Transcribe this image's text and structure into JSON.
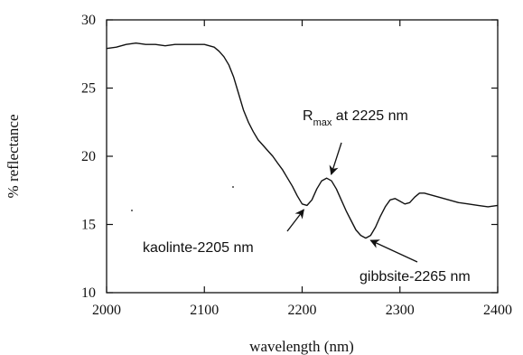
{
  "chart_data": {
    "type": "line",
    "xlabel": "wavelength (nm)",
    "ylabel": "% reflectance",
    "xlim": [
      2000,
      2400
    ],
    "ylim": [
      10,
      30
    ],
    "x_ticks": [
      2000,
      2100,
      2200,
      2300,
      2400
    ],
    "y_ticks": [
      10,
      15,
      20,
      25,
      30
    ],
    "x_tick_labels": [
      "2000",
      "2100",
      "2200",
      "2300",
      "2400"
    ],
    "y_tick_labels": [
      "10",
      "15",
      "20",
      "25",
      "30"
    ],
    "grid": false,
    "series": [
      {
        "color": "#111111",
        "x": [
          2000,
          2010,
          2020,
          2030,
          2040,
          2050,
          2060,
          2070,
          2080,
          2090,
          2100,
          2110,
          2115,
          2120,
          2125,
          2130,
          2135,
          2140,
          2145,
          2150,
          2155,
          2160,
          2165,
          2170,
          2175,
          2180,
          2185,
          2190,
          2195,
          2200,
          2205,
          2210,
          2215,
          2220,
          2225,
          2230,
          2235,
          2240,
          2245,
          2250,
          2255,
          2260,
          2265,
          2270,
          2275,
          2280,
          2285,
          2290,
          2295,
          2300,
          2305,
          2310,
          2315,
          2320,
          2325,
          2330,
          2340,
          2350,
          2360,
          2370,
          2380,
          2390,
          2400
        ],
        "y": [
          27.9,
          28.0,
          28.2,
          28.3,
          28.2,
          28.2,
          28.1,
          28.2,
          28.2,
          28.2,
          28.2,
          28.0,
          27.7,
          27.3,
          26.7,
          25.8,
          24.6,
          23.4,
          22.5,
          21.8,
          21.2,
          20.8,
          20.4,
          20.0,
          19.5,
          19.0,
          18.4,
          17.8,
          17.1,
          16.5,
          16.4,
          16.8,
          17.6,
          18.2,
          18.4,
          18.2,
          17.6,
          16.8,
          16.0,
          15.3,
          14.6,
          14.2,
          14.0,
          14.2,
          14.8,
          15.6,
          16.3,
          16.8,
          16.9,
          16.7,
          16.5,
          16.6,
          17.0,
          17.3,
          17.3,
          17.2,
          17.0,
          16.8,
          16.6,
          16.5,
          16.4,
          16.3,
          16.4
        ]
      }
    ],
    "annotations": [
      {
        "text": "kaolinte-2205 nm",
        "target": [
          2205,
          16.4
        ]
      },
      {
        "text_main": "R",
        "text_sub": "max",
        "text_rest": " at 2225 nm",
        "target": [
          2228,
          18.3
        ]
      },
      {
        "text": "gibbsite-2265 nm",
        "target": [
          2265,
          14.0
        ]
      }
    ]
  }
}
